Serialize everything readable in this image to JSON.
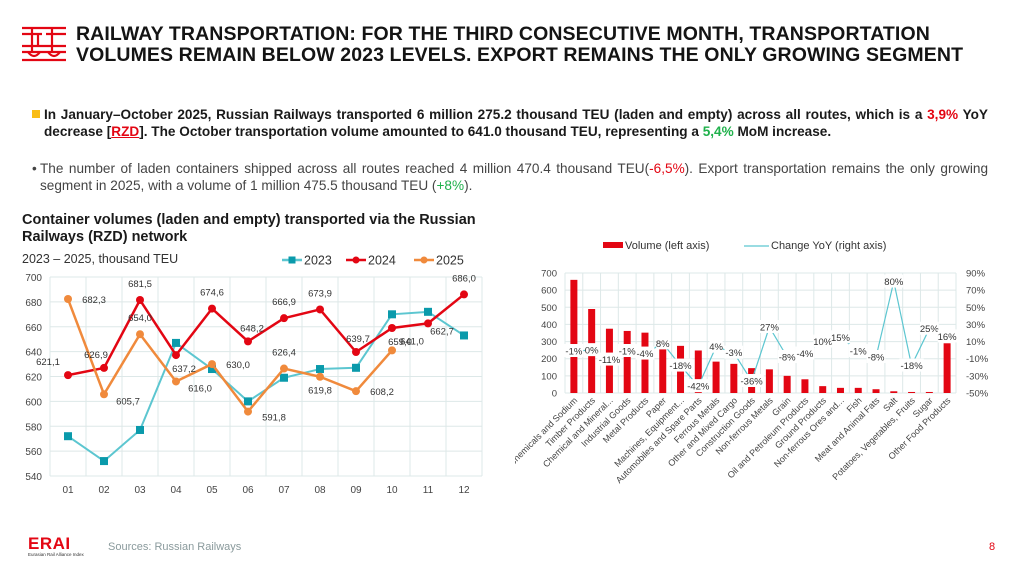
{
  "header": {
    "icon": "railway-gate-icon",
    "title": "RAILWAY TRANSPORTATION: FOR THE THIRD CONSECUTIVE MONTH, TRANSPORTATION VOLUMES REMAIN BELOW 2023 LEVELS. EXPORT REMAINS THE ONLY GROWING SEGMENT"
  },
  "summary": {
    "p1_a": "In January–October 2025, Russian Railways transported 6 million 275.2 thousand TEU (laden and empty) across all routes, which is a ",
    "p1_decrease": "3,9%",
    "p1_b": " YoY decrease [",
    "p1_link": "RZD",
    "p1_c": "]. The October transportation volume amounted to 641.0 thousand TEU, representing a ",
    "p1_increase": "5,4%",
    "p1_d": " MoM increase.",
    "p2_a": "The number of laden containers shipped across all routes reached 4 million 470.4 thousand TEU(",
    "p2_neg": "-6,5%",
    "p2_b": "). Export transportation remains the only growing segment in 2025, with a volume of 1 million 475.5 thousand TEU (",
    "p2_pos": "+8%",
    "p2_c": ")."
  },
  "colors": {
    "brand_red": "#e30613",
    "accent_yellow": "#f9bd17",
    "growth_green": "#1fb14b",
    "series_2023": "#5cc6d0",
    "series_2023_marker": "#0a9aab",
    "series_2024": "#e30613",
    "series_2025": "#f08a3c"
  },
  "chart_data": [
    {
      "type": "line",
      "title": "Container volumes (laden and empty) transported via the Russian Railways (RZD) network",
      "subtitle": "2023 – 2025, thousand TEU",
      "xlabel": "",
      "ylabel": "",
      "categories": [
        "01",
        "02",
        "03",
        "04",
        "05",
        "06",
        "07",
        "08",
        "09",
        "10",
        "11",
        "12"
      ],
      "ylim": [
        540,
        700
      ],
      "yticks": [
        540,
        560,
        580,
        600,
        620,
        640,
        660,
        680,
        700
      ],
      "grid": true,
      "legend_position": "top-right",
      "series": [
        {
          "name": "2023",
          "marker": "square",
          "labeled": false,
          "values": [
            572,
            552,
            577,
            647,
            626,
            600,
            619,
            626,
            627,
            670,
            672,
            653
          ]
        },
        {
          "name": "2024",
          "marker": "circle",
          "labeled": true,
          "values": [
            621.1,
            626.9,
            681.5,
            637.2,
            674.6,
            648.2,
            666.9,
            673.9,
            639.7,
            659.0,
            662.7,
            686.0
          ],
          "labels": [
            "621,1",
            "626,9",
            "681,5",
            "637,2",
            "674,6",
            "648,2",
            "666,9",
            "673,9",
            "639,7",
            "659,0",
            "662,7",
            "686,0"
          ]
        },
        {
          "name": "2025",
          "marker": "circle",
          "labeled": true,
          "values": [
            682.3,
            605.7,
            654.0,
            616.0,
            630.0,
            591.8,
            626.4,
            619.8,
            608.2,
            641.0,
            null,
            null
          ],
          "labels": [
            "682,3",
            "605,7",
            "654,0",
            "616,0",
            "630,0",
            "591,8",
            "626,4",
            "619,8",
            "608,2",
            "641,0",
            null,
            null
          ]
        }
      ]
    },
    {
      "type": "bar",
      "title": "",
      "legend_position": "top",
      "legend": [
        "Volume (left axis)",
        "Change YoY (right axis)"
      ],
      "categories": [
        "Chemicals and Sodium",
        "Timber Products",
        "Chemical and Mineral...",
        "Industrial Goods",
        "Metal Products",
        "Paper",
        "Machines, Equipment...",
        "Automobiles and Spare Parts",
        "Ferrous Metals",
        "Other and Mixed Cargo",
        "Construction Goods",
        "Non-ferrous Metals",
        "Grain",
        "Oil and Petroleum Products",
        "Ground Products",
        "Non-ferrous Ores and...",
        "Fish",
        "Meat and Animal Fats",
        "Salt",
        "Potatoes, Vegetables, Fruits",
        "Sugar",
        "Other Food Products"
      ],
      "ylim_left": [
        0,
        700
      ],
      "yticks_left": [
        0,
        100,
        200,
        300,
        400,
        500,
        600,
        700
      ],
      "ylim_right": [
        -50,
        90
      ],
      "yticks_right": [
        "-50%",
        "-30%",
        "-10%",
        "10%",
        "30%",
        "50%",
        "70%",
        "90%"
      ],
      "grid": true,
      "series": [
        {
          "name": "Volume (left axis)",
          "axis": "left",
          "type": "bar",
          "values": [
            660,
            490,
            375,
            362,
            352,
            255,
            275,
            248,
            183,
            170,
            145,
            138,
            100,
            80,
            40,
            30,
            30,
            22,
            10,
            6,
            6,
            290
          ]
        },
        {
          "name": "Change YoY (right axis)",
          "axis": "right",
          "type": "line",
          "values": [
            -1,
            0,
            -11,
            -1,
            -4,
            8,
            -18,
            -42,
            4,
            -3,
            -36,
            27,
            -8,
            -4,
            10,
            15,
            -1,
            -8,
            80,
            -18,
            25,
            16
          ],
          "labels": [
            "-1%",
            "0%",
            "-11%",
            "-1%",
            "-4%",
            "8%",
            "-18%",
            "-42%",
            "4%",
            "-3%",
            "-36%",
            "27%",
            "-8%",
            "-4%",
            "10%",
            "15%",
            "-1%",
            "-8%",
            "80%",
            "-18%",
            "25%",
            "16%"
          ]
        }
      ]
    }
  ],
  "footer": {
    "logo_text": "ERAI",
    "logo_sub": "Eurasian Rail Alliance Index",
    "source": "Sources: Russian Railways",
    "page_number": "8"
  }
}
